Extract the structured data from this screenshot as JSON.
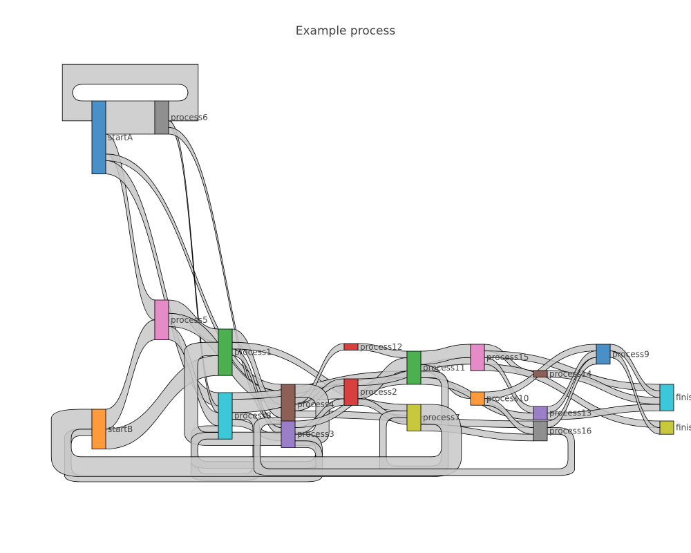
{
  "chart_data": {
    "type": "sankey",
    "title": "Example process",
    "nodes": [
      {
        "id": "startA",
        "label": "startA",
        "color": "#4a90c8"
      },
      {
        "id": "process6",
        "label": "process6",
        "color": "#8f8f8f"
      },
      {
        "id": "process5",
        "label": "process5",
        "color": "#e58cc8"
      },
      {
        "id": "startB",
        "label": "startB",
        "color": "#ff9a3c"
      },
      {
        "id": "process1",
        "label": "process1",
        "color": "#4caf50"
      },
      {
        "id": "process8",
        "label": "process8",
        "color": "#3cc8d8"
      },
      {
        "id": "process4",
        "label": "process4",
        "color": "#8d5f56"
      },
      {
        "id": "process3",
        "label": "process3",
        "color": "#9a7ec8"
      },
      {
        "id": "process12",
        "label": "process12",
        "color": "#d84040"
      },
      {
        "id": "process2",
        "label": "process2",
        "color": "#d84040"
      },
      {
        "id": "process11",
        "label": "process11",
        "color": "#4caf50"
      },
      {
        "id": "process7",
        "label": "process7",
        "color": "#c8c83c"
      },
      {
        "id": "process15",
        "label": "process15",
        "color": "#e58cc8"
      },
      {
        "id": "process10",
        "label": "process10",
        "color": "#ff9a3c"
      },
      {
        "id": "process14",
        "label": "process14",
        "color": "#8d5f56"
      },
      {
        "id": "process13",
        "label": "process13",
        "color": "#9a7ec8"
      },
      {
        "id": "process16",
        "label": "process16",
        "color": "#8f8f8f"
      },
      {
        "id": "process9",
        "label": "process9",
        "color": "#4a90c8"
      },
      {
        "id": "finishB",
        "label": "finishB",
        "color": "#3cc8d8"
      },
      {
        "id": "finishA",
        "label": "finishA",
        "color": "#c8c83c"
      }
    ],
    "links": [
      {
        "source": "startA",
        "target": "process6",
        "value": 5
      },
      {
        "source": "process6",
        "target": "startA",
        "value": 3
      },
      {
        "source": "startA",
        "target": "process5",
        "value": 3
      },
      {
        "source": "startA",
        "target": "process8",
        "value": 2
      },
      {
        "source": "startA",
        "target": "process4",
        "value": 1
      },
      {
        "source": "process6",
        "target": "process8",
        "value": 1
      },
      {
        "source": "process6",
        "target": "process3",
        "value": 1
      },
      {
        "source": "startB",
        "target": "process5",
        "value": 3
      },
      {
        "source": "startB",
        "target": "process1",
        "value": 3
      },
      {
        "source": "process5",
        "target": "process1",
        "value": 2
      },
      {
        "source": "process5",
        "target": "process8",
        "value": 2
      },
      {
        "source": "process5",
        "target": "process4",
        "value": 2
      },
      {
        "source": "process1",
        "target": "process4",
        "value": 2
      },
      {
        "source": "process1",
        "target": "process3",
        "value": 1
      },
      {
        "source": "process1",
        "target": "process7",
        "value": 1
      },
      {
        "source": "process8",
        "target": "process2",
        "value": 2
      },
      {
        "source": "process8",
        "target": "process11",
        "value": 1
      },
      {
        "source": "process8",
        "target": "process3",
        "value": 1
      },
      {
        "source": "process8",
        "target": "process8",
        "value": 1
      },
      {
        "source": "process4",
        "target": "process12",
        "value": 1
      },
      {
        "source": "process4",
        "target": "process2",
        "value": 1
      },
      {
        "source": "process4",
        "target": "process16",
        "value": 1
      },
      {
        "source": "process4",
        "target": "process1",
        "value": 2
      },
      {
        "source": "process3",
        "target": "process2",
        "value": 1
      },
      {
        "source": "process3",
        "target": "process11",
        "value": 1
      },
      {
        "source": "process3",
        "target": "process8",
        "value": 1
      },
      {
        "source": "process3",
        "target": "startB",
        "value": 1
      },
      {
        "source": "process12",
        "target": "process11",
        "value": 1
      },
      {
        "source": "process2",
        "target": "process11",
        "value": 2
      },
      {
        "source": "process2",
        "target": "process15",
        "value": 1
      },
      {
        "source": "process2",
        "target": "process7",
        "value": 1
      },
      {
        "source": "process11",
        "target": "process15",
        "value": 2
      },
      {
        "source": "process11",
        "target": "process10",
        "value": 1
      },
      {
        "source": "process11",
        "target": "process13",
        "value": 1
      },
      {
        "source": "process11",
        "target": "process7",
        "value": 1
      },
      {
        "source": "process7",
        "target": "process16",
        "value": 1
      },
      {
        "source": "process7",
        "target": "startB",
        "value": 3
      },
      {
        "source": "process15",
        "target": "process14",
        "value": 1
      },
      {
        "source": "process15",
        "target": "finishB",
        "value": 1
      },
      {
        "source": "process15",
        "target": "finishA",
        "value": 1
      },
      {
        "source": "process15",
        "target": "process13",
        "value": 1
      },
      {
        "source": "process10",
        "target": "process16",
        "value": 1
      },
      {
        "source": "process10",
        "target": "process9",
        "value": 1
      },
      {
        "source": "process14",
        "target": "finishB",
        "value": 1
      },
      {
        "source": "process13",
        "target": "process9",
        "value": 1
      },
      {
        "source": "process13",
        "target": "finishB",
        "value": 1
      },
      {
        "source": "process16",
        "target": "process9",
        "value": 1
      },
      {
        "source": "process16",
        "target": "process4",
        "value": 1
      },
      {
        "source": "process9",
        "target": "finishB",
        "value": 1
      },
      {
        "source": "process9",
        "target": "finishA",
        "value": 1
      }
    ]
  }
}
